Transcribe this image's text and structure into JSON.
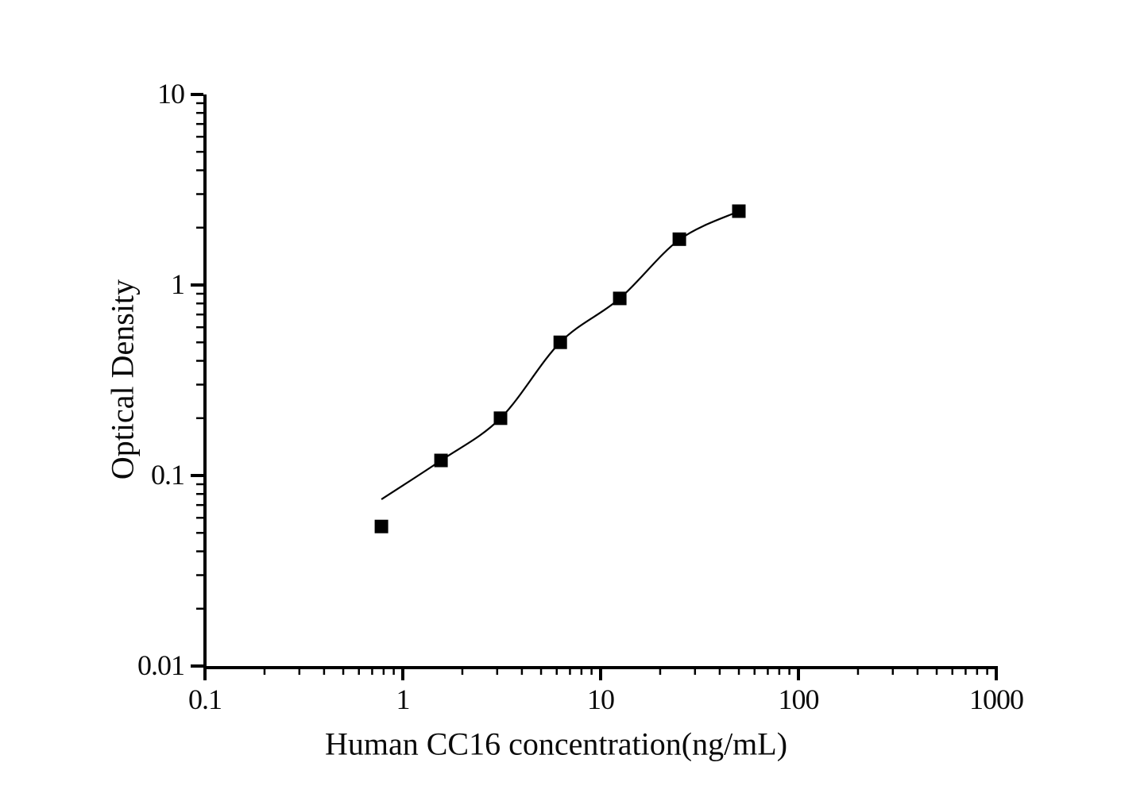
{
  "figure": {
    "background_color": "#ffffff",
    "ink_color": "#000000"
  },
  "chart_data": {
    "type": "scatter",
    "title": "",
    "xlabel": "Human CC16 concentration(ng/mL)",
    "ylabel": "Optical Density",
    "x_scale": "log",
    "y_scale": "log",
    "xlim": [
      0.1,
      1000
    ],
    "ylim": [
      0.01,
      10
    ],
    "x_ticks": {
      "values": [
        0.1,
        1,
        10,
        100,
        1000
      ],
      "labels": [
        "0.1",
        "1",
        "10",
        "100",
        "1000"
      ]
    },
    "y_ticks": {
      "values": [
        0.01,
        0.1,
        1,
        10
      ],
      "labels": [
        "0.01",
        "0.1",
        "1",
        "10"
      ]
    },
    "minor_ticks": "log decade subdivisions 2-9 on both axes",
    "grid": false,
    "legend": "none",
    "series": [
      {
        "marker": "filled-square",
        "marker_color": "#000000",
        "x": [
          0.78,
          1.56,
          3.12,
          6.25,
          12.5,
          25,
          50
        ],
        "y": [
          0.054,
          0.12,
          0.2,
          0.5,
          0.85,
          1.74,
          2.44
        ]
      }
    ],
    "fit_curve": {
      "color": "#000000",
      "x": [
        0.78,
        1.56,
        3.12,
        6.25,
        12.5,
        25,
        50
      ],
      "y": [
        0.075,
        0.12,
        0.2,
        0.5,
        0.85,
        1.73,
        2.44
      ]
    }
  }
}
